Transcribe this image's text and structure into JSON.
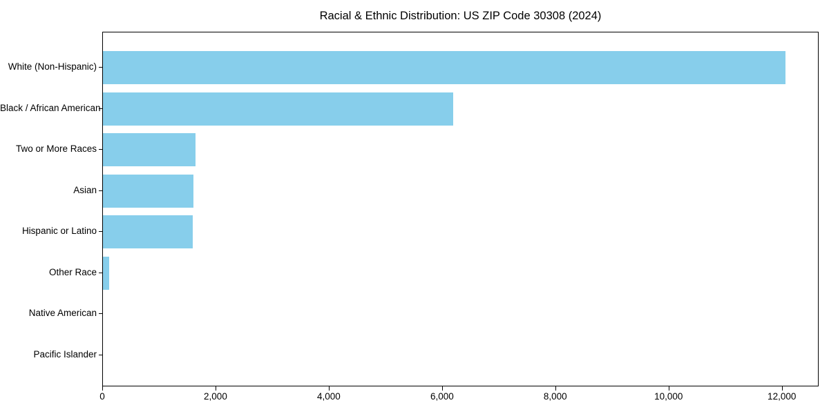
{
  "chart_data": {
    "type": "bar",
    "orientation": "horizontal",
    "title": "Racial & Ethnic Distribution: US ZIP Code 30308 (2024)",
    "categories": [
      "White (Non-Hispanic)",
      "Black / African American",
      "Two or More Races",
      "Asian",
      "Hispanic or Latino",
      "Other Race",
      "Native American",
      "Pacific Islander"
    ],
    "values": [
      12050,
      6180,
      1630,
      1600,
      1580,
      110,
      0,
      0
    ],
    "xlabel": "",
    "ylabel": "",
    "xlim": [
      0,
      12650
    ],
    "x_ticks": [
      0,
      2000,
      4000,
      6000,
      8000,
      10000,
      12000
    ],
    "x_tick_labels": [
      "0",
      "2,000",
      "4,000",
      "6,000",
      "8,000",
      "10,000",
      "12,000"
    ],
    "bar_color": "#87CEEB",
    "axis_color": "#000000",
    "text_color": "#000000",
    "background_color": "#FFFFFF",
    "grid": false,
    "legend": null
  }
}
